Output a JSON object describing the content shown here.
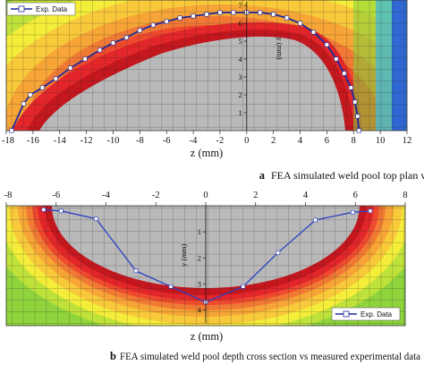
{
  "chart_data": [
    {
      "type": "line",
      "panel": "a",
      "xlabel": "z (mm)",
      "ylabel": "y (mm)",
      "xlim": [
        -18,
        12
      ],
      "ylim": [
        0,
        7.3
      ],
      "x_ticks": [
        "-18",
        "-16",
        "-14",
        "-12",
        "-10",
        "-8",
        "-6",
        "-4",
        "-2",
        "0",
        "2",
        "4",
        "6",
        "8",
        "10",
        "12"
      ],
      "y_ticks": [
        "1",
        "2",
        "3",
        "4",
        "5",
        "6",
        "7"
      ],
      "legend": {
        "position": "top-left",
        "entries": [
          "Exp. Data"
        ]
      },
      "caption_letter": "a",
      "caption": "FEA simulated weld pool top plan view vs measured experimental data",
      "background": "FEA temperature contour field with square mesh",
      "series": [
        {
          "name": "Exp. Data",
          "x": [
            -17.6,
            -16.7,
            -16.2,
            -15.3,
            -14.3,
            -13.2,
            -12.1,
            -11.0,
            -10.0,
            -9.0,
            -8.0,
            -7.0,
            -6.0,
            -5.0,
            -4.0,
            -3.0,
            -2.0,
            -1.0,
            0.0,
            1.0,
            2.0,
            3.0,
            4.0,
            5.0,
            6.0,
            6.7,
            7.3,
            7.8,
            8.1,
            8.3,
            8.4
          ],
          "y": [
            0.0,
            1.5,
            2.0,
            2.4,
            2.9,
            3.5,
            4.0,
            4.5,
            4.9,
            5.2,
            5.6,
            5.9,
            6.1,
            6.3,
            6.4,
            6.5,
            6.6,
            6.6,
            6.6,
            6.6,
            6.5,
            6.3,
            6.0,
            5.5,
            4.8,
            4.0,
            3.2,
            2.4,
            1.6,
            0.8,
            0.0
          ]
        }
      ]
    },
    {
      "type": "line",
      "panel": "b",
      "xlabel": "z (mm)",
      "ylabel": "y (mm)",
      "xlim": [
        -8,
        8
      ],
      "ylim": [
        4.6,
        0
      ],
      "x_ticks": [
        "-8",
        "-6",
        "-4",
        "-2",
        "0",
        "2",
        "4",
        "6",
        "8"
      ],
      "y_ticks": [
        "1",
        "2",
        "3",
        "4"
      ],
      "legend": {
        "position": "bottom-right",
        "entries": [
          "Exp. Data"
        ]
      },
      "caption_letter": "b",
      "caption": "FEA simulated weld pool depth cross section vs measured experimental data",
      "background": "FEA temperature contour field with square mesh",
      "series": [
        {
          "name": "Exp. Data",
          "x": [
            -6.5,
            -5.8,
            -4.4,
            -2.8,
            -1.4,
            0.0,
            1.5,
            2.9,
            4.4,
            5.9,
            6.6
          ],
          "y": [
            0.15,
            0.2,
            0.5,
            2.5,
            3.1,
            3.7,
            3.1,
            1.8,
            0.55,
            0.25,
            0.2
          ]
        }
      ]
    }
  ]
}
